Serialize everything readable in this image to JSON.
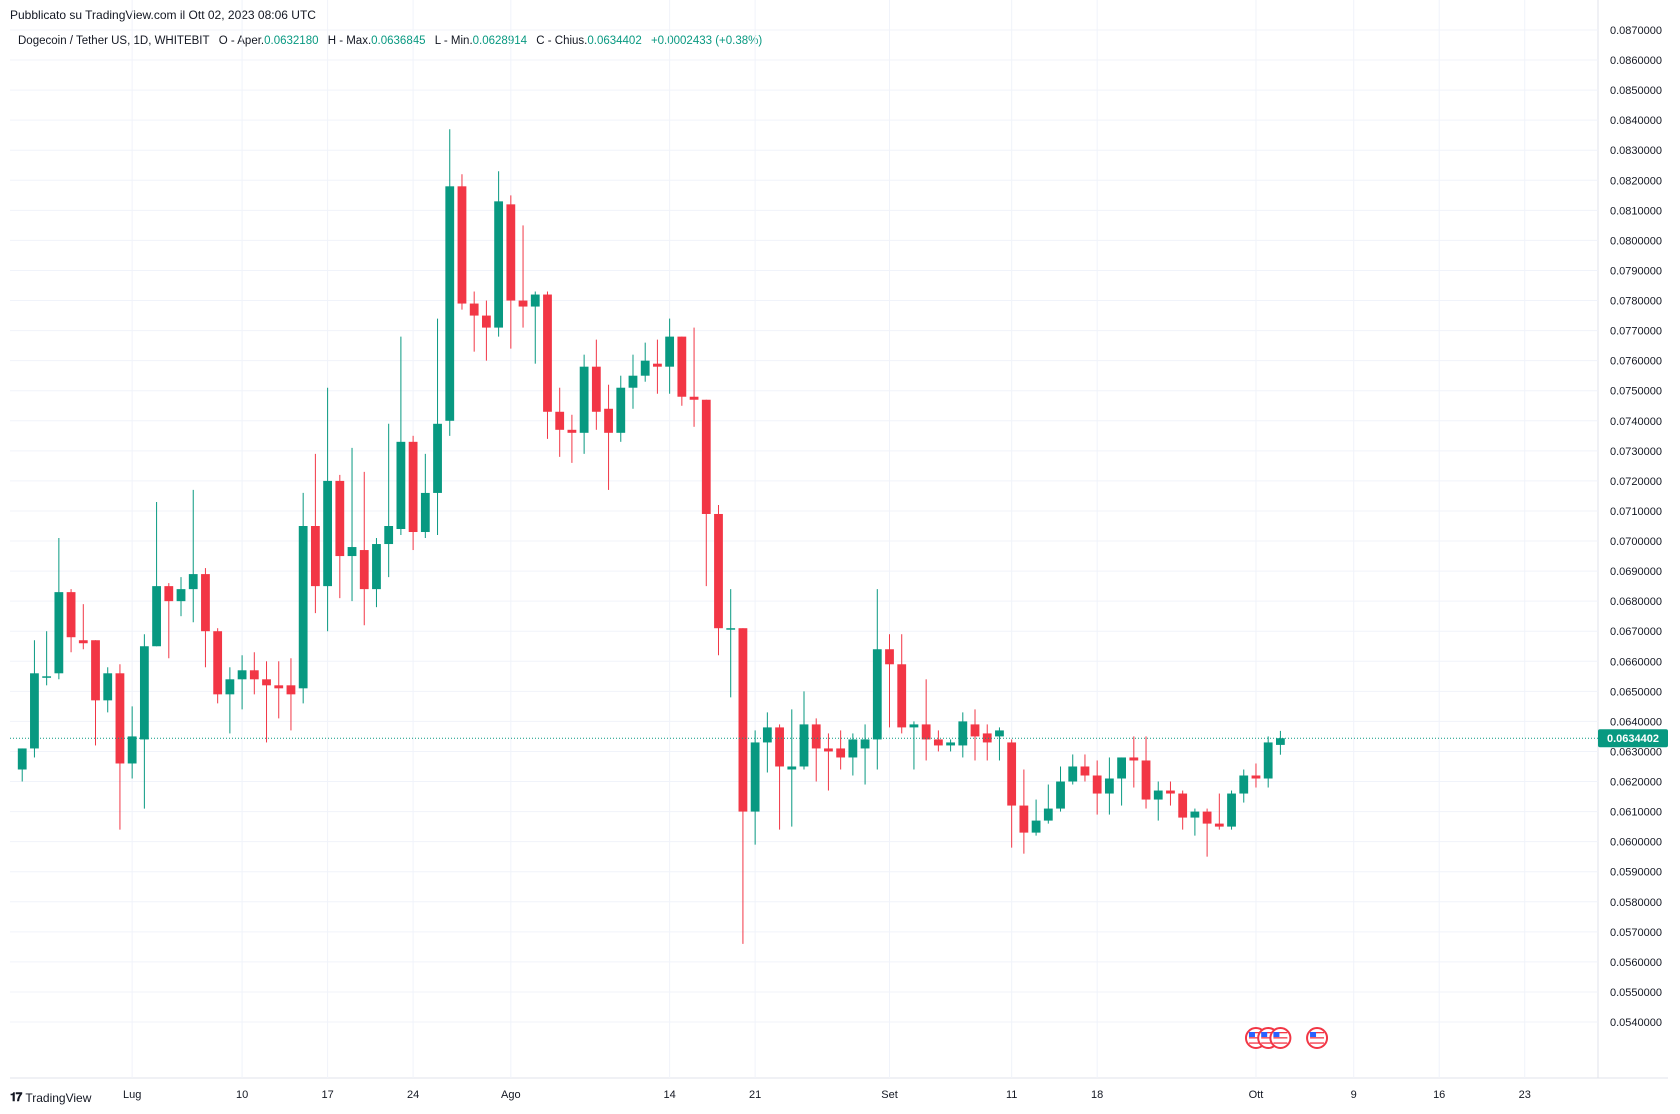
{
  "header": {
    "published": "Pubblicato su TradingView.com il Ott 02, 2023 08:06 UTC"
  },
  "legend": {
    "symbol": "Dogecoin / Tether US, 1D, WHITEBIT",
    "open_label": "O - Aper.",
    "open": "0.0632180",
    "high_label": "H - Max.",
    "high": "0.0636845",
    "low_label": "L - Min.",
    "low": "0.0628914",
    "close_label": "C - Chius.",
    "close": "0.0634402",
    "change": "+0.0002433 (+0.38%)"
  },
  "brand": {
    "name": "TradingView"
  },
  "colors": {
    "up": "#089981",
    "down": "#F23645",
    "grid": "#F0F3FA",
    "text": "#131722"
  },
  "chart_data": {
    "type": "candlestick",
    "ylim": [
      0.0534,
      0.087
    ],
    "y_ticks": [
      "0.0870000",
      "0.0860000",
      "0.0850000",
      "0.0840000",
      "0.0830000",
      "0.0820000",
      "0.0810000",
      "0.0800000",
      "0.0790000",
      "0.0780000",
      "0.0770000",
      "0.0760000",
      "0.0750000",
      "0.0740000",
      "0.0730000",
      "0.0720000",
      "0.0710000",
      "0.0700000",
      "0.0690000",
      "0.0680000",
      "0.0670000",
      "0.0660000",
      "0.0650000",
      "0.0640000",
      "0.0630000",
      "0.0620000",
      "0.0610000",
      "0.0600000",
      "0.0590000",
      "0.0580000",
      "0.0570000",
      "0.0560000",
      "0.0550000",
      "0.0540000"
    ],
    "x_ticks": [
      {
        "label": "Lug",
        "date": "2023-07-01"
      },
      {
        "label": "10",
        "date": "2023-07-10"
      },
      {
        "label": "17",
        "date": "2023-07-17"
      },
      {
        "label": "24",
        "date": "2023-07-24"
      },
      {
        "label": "Ago",
        "date": "2023-08-01"
      },
      {
        "label": "14",
        "date": "2023-08-14"
      },
      {
        "label": "21",
        "date": "2023-08-21"
      },
      {
        "label": "Set",
        "date": "2023-09-01"
      },
      {
        "label": "11",
        "date": "2023-09-11"
      },
      {
        "label": "18",
        "date": "2023-09-18"
      },
      {
        "label": "Ott",
        "date": "2023-10-01"
      },
      {
        "label": "9",
        "date": "2023-10-09"
      },
      {
        "label": "16",
        "date": "2023-10-16"
      },
      {
        "label": "23",
        "date": "2023-10-23"
      }
    ],
    "date_range": [
      "2023-06-21",
      "2023-10-29"
    ],
    "current_price": "0.0634402",
    "current_value": 0.0634402,
    "candles": [
      {
        "date": "2023-06-22",
        "o": 0.0624,
        "h": 0.0631,
        "l": 0.062,
        "c": 0.0631
      },
      {
        "date": "2023-06-23",
        "o": 0.0631,
        "h": 0.0667,
        "l": 0.0628,
        "c": 0.0656
      },
      {
        "date": "2023-06-24",
        "o": 0.0655,
        "h": 0.067,
        "l": 0.0652,
        "c": 0.0655
      },
      {
        "date": "2023-06-25",
        "o": 0.0656,
        "h": 0.0701,
        "l": 0.0654,
        "c": 0.0683
      },
      {
        "date": "2023-06-26",
        "o": 0.0683,
        "h": 0.0684,
        "l": 0.0663,
        "c": 0.0668
      },
      {
        "date": "2023-06-27",
        "o": 0.0667,
        "h": 0.0679,
        "l": 0.0664,
        "c": 0.0666
      },
      {
        "date": "2023-06-28",
        "o": 0.0667,
        "h": 0.0667,
        "l": 0.0632,
        "c": 0.0647
      },
      {
        "date": "2023-06-29",
        "o": 0.0647,
        "h": 0.0658,
        "l": 0.0643,
        "c": 0.0656
      },
      {
        "date": "2023-06-30",
        "o": 0.0656,
        "h": 0.0659,
        "l": 0.0604,
        "c": 0.0626
      },
      {
        "date": "2023-07-01",
        "o": 0.0626,
        "h": 0.0645,
        "l": 0.0621,
        "c": 0.0635
      },
      {
        "date": "2023-07-02",
        "o": 0.0634,
        "h": 0.0669,
        "l": 0.0611,
        "c": 0.0665
      },
      {
        "date": "2023-07-03",
        "o": 0.0665,
        "h": 0.0713,
        "l": 0.0665,
        "c": 0.0685
      },
      {
        "date": "2023-07-04",
        "o": 0.0685,
        "h": 0.0686,
        "l": 0.0661,
        "c": 0.068
      },
      {
        "date": "2023-07-05",
        "o": 0.068,
        "h": 0.0688,
        "l": 0.0675,
        "c": 0.0684
      },
      {
        "date": "2023-07-06",
        "o": 0.0684,
        "h": 0.0717,
        "l": 0.0673,
        "c": 0.0689
      },
      {
        "date": "2023-07-07",
        "o": 0.0689,
        "h": 0.0691,
        "l": 0.0658,
        "c": 0.067
      },
      {
        "date": "2023-07-08",
        "o": 0.067,
        "h": 0.0671,
        "l": 0.0646,
        "c": 0.0649
      },
      {
        "date": "2023-07-09",
        "o": 0.0649,
        "h": 0.0658,
        "l": 0.0636,
        "c": 0.0654
      },
      {
        "date": "2023-07-10",
        "o": 0.0654,
        "h": 0.0662,
        "l": 0.0644,
        "c": 0.0657
      },
      {
        "date": "2023-07-11",
        "o": 0.0657,
        "h": 0.0663,
        "l": 0.0649,
        "c": 0.0654
      },
      {
        "date": "2023-07-12",
        "o": 0.0654,
        "h": 0.066,
        "l": 0.0633,
        "c": 0.0652
      },
      {
        "date": "2023-07-13",
        "o": 0.0652,
        "h": 0.066,
        "l": 0.0641,
        "c": 0.0651
      },
      {
        "date": "2023-07-14",
        "o": 0.0652,
        "h": 0.0661,
        "l": 0.0637,
        "c": 0.0649
      },
      {
        "date": "2023-07-15",
        "o": 0.0651,
        "h": 0.0716,
        "l": 0.0646,
        "c": 0.0705
      },
      {
        "date": "2023-07-16",
        "o": 0.0705,
        "h": 0.0729,
        "l": 0.0676,
        "c": 0.0685
      },
      {
        "date": "2023-07-17",
        "o": 0.0685,
        "h": 0.0751,
        "l": 0.067,
        "c": 0.072
      },
      {
        "date": "2023-07-18",
        "o": 0.072,
        "h": 0.0722,
        "l": 0.0681,
        "c": 0.0695
      },
      {
        "date": "2023-07-19",
        "o": 0.0695,
        "h": 0.0731,
        "l": 0.068,
        "c": 0.0698
      },
      {
        "date": "2023-07-20",
        "o": 0.0697,
        "h": 0.0723,
        "l": 0.0672,
        "c": 0.0684
      },
      {
        "date": "2023-07-21",
        "o": 0.0684,
        "h": 0.0701,
        "l": 0.0678,
        "c": 0.0699
      },
      {
        "date": "2023-07-22",
        "o": 0.0699,
        "h": 0.0739,
        "l": 0.0688,
        "c": 0.0705
      },
      {
        "date": "2023-07-23",
        "o": 0.0704,
        "h": 0.0768,
        "l": 0.0702,
        "c": 0.0733
      },
      {
        "date": "2023-07-24",
        "o": 0.0733,
        "h": 0.0735,
        "l": 0.0697,
        "c": 0.0703
      },
      {
        "date": "2023-07-25",
        "o": 0.0703,
        "h": 0.0729,
        "l": 0.0701,
        "c": 0.0716
      },
      {
        "date": "2023-07-26",
        "o": 0.0716,
        "h": 0.0774,
        "l": 0.0702,
        "c": 0.0739
      },
      {
        "date": "2023-07-27",
        "o": 0.074,
        "h": 0.0837,
        "l": 0.0735,
        "c": 0.0818
      },
      {
        "date": "2023-07-28",
        "o": 0.0818,
        "h": 0.0822,
        "l": 0.0777,
        "c": 0.0779
      },
      {
        "date": "2023-07-29",
        "o": 0.0779,
        "h": 0.0783,
        "l": 0.0763,
        "c": 0.0775
      },
      {
        "date": "2023-07-30",
        "o": 0.0775,
        "h": 0.078,
        "l": 0.076,
        "c": 0.0771
      },
      {
        "date": "2023-07-31",
        "o": 0.0771,
        "h": 0.0823,
        "l": 0.0768,
        "c": 0.0813
      },
      {
        "date": "2023-08-01",
        "o": 0.0812,
        "h": 0.0815,
        "l": 0.0764,
        "c": 0.078
      },
      {
        "date": "2023-08-02",
        "o": 0.078,
        "h": 0.0805,
        "l": 0.0771,
        "c": 0.0778
      },
      {
        "date": "2023-08-03",
        "o": 0.0778,
        "h": 0.0783,
        "l": 0.0759,
        "c": 0.0782
      },
      {
        "date": "2023-08-04",
        "o": 0.0782,
        "h": 0.0783,
        "l": 0.0734,
        "c": 0.0743
      },
      {
        "date": "2023-08-05",
        "o": 0.0743,
        "h": 0.0751,
        "l": 0.0728,
        "c": 0.0737
      },
      {
        "date": "2023-08-06",
        "o": 0.0737,
        "h": 0.0742,
        "l": 0.0726,
        "c": 0.0736
      },
      {
        "date": "2023-08-07",
        "o": 0.0736,
        "h": 0.0762,
        "l": 0.0729,
        "c": 0.0758
      },
      {
        "date": "2023-08-08",
        "o": 0.0758,
        "h": 0.0767,
        "l": 0.0737,
        "c": 0.0743
      },
      {
        "date": "2023-08-09",
        "o": 0.0744,
        "h": 0.0752,
        "l": 0.0717,
        "c": 0.0736
      },
      {
        "date": "2023-08-10",
        "o": 0.0736,
        "h": 0.0755,
        "l": 0.0733,
        "c": 0.0751
      },
      {
        "date": "2023-08-11",
        "o": 0.0751,
        "h": 0.0762,
        "l": 0.0744,
        "c": 0.0755
      },
      {
        "date": "2023-08-12",
        "o": 0.0755,
        "h": 0.0766,
        "l": 0.0753,
        "c": 0.076
      },
      {
        "date": "2023-08-13",
        "o": 0.0759,
        "h": 0.0767,
        "l": 0.0749,
        "c": 0.0758
      },
      {
        "date": "2023-08-14",
        "o": 0.0758,
        "h": 0.0774,
        "l": 0.0749,
        "c": 0.0768
      },
      {
        "date": "2023-08-15",
        "o": 0.0768,
        "h": 0.0768,
        "l": 0.0745,
        "c": 0.0748
      },
      {
        "date": "2023-08-16",
        "o": 0.0748,
        "h": 0.0771,
        "l": 0.0738,
        "c": 0.0747
      },
      {
        "date": "2023-08-17",
        "o": 0.0747,
        "h": 0.0747,
        "l": 0.0685,
        "c": 0.0709
      },
      {
        "date": "2023-08-18",
        "o": 0.0709,
        "h": 0.0712,
        "l": 0.0662,
        "c": 0.0671
      },
      {
        "date": "2023-08-19",
        "o": 0.0671,
        "h": 0.0684,
        "l": 0.0648,
        "c": 0.0671
      },
      {
        "date": "2023-08-20",
        "o": 0.0671,
        "h": 0.0671,
        "l": 0.0566,
        "c": 0.061
      },
      {
        "date": "2023-08-21",
        "o": 0.061,
        "h": 0.0637,
        "l": 0.0599,
        "c": 0.0633
      },
      {
        "date": "2023-08-22",
        "o": 0.0633,
        "h": 0.0643,
        "l": 0.0623,
        "c": 0.0638
      },
      {
        "date": "2023-08-23",
        "o": 0.0638,
        "h": 0.0639,
        "l": 0.0604,
        "c": 0.0625
      },
      {
        "date": "2023-08-24",
        "o": 0.0624,
        "h": 0.0644,
        "l": 0.0605,
        "c": 0.0625
      },
      {
        "date": "2023-08-25",
        "o": 0.0625,
        "h": 0.065,
        "l": 0.0624,
        "c": 0.0639
      },
      {
        "date": "2023-08-26",
        "o": 0.0639,
        "h": 0.0641,
        "l": 0.062,
        "c": 0.0631
      },
      {
        "date": "2023-08-27",
        "o": 0.0631,
        "h": 0.0636,
        "l": 0.0617,
        "c": 0.063
      },
      {
        "date": "2023-08-28",
        "o": 0.0631,
        "h": 0.0637,
        "l": 0.0624,
        "c": 0.0628
      },
      {
        "date": "2023-08-29",
        "o": 0.0628,
        "h": 0.0636,
        "l": 0.0622,
        "c": 0.0634
      },
      {
        "date": "2023-08-30",
        "o": 0.0631,
        "h": 0.0639,
        "l": 0.0619,
        "c": 0.0634
      },
      {
        "date": "2023-08-31",
        "o": 0.0634,
        "h": 0.0684,
        "l": 0.0624,
        "c": 0.0664
      },
      {
        "date": "2023-09-01",
        "o": 0.0664,
        "h": 0.0669,
        "l": 0.0638,
        "c": 0.0659
      },
      {
        "date": "2023-09-02",
        "o": 0.0659,
        "h": 0.0669,
        "l": 0.0636,
        "c": 0.0638
      },
      {
        "date": "2023-09-03",
        "o": 0.0638,
        "h": 0.064,
        "l": 0.0624,
        "c": 0.0639
      },
      {
        "date": "2023-09-04",
        "o": 0.0639,
        "h": 0.0654,
        "l": 0.0627,
        "c": 0.0634
      },
      {
        "date": "2023-09-05",
        "o": 0.0634,
        "h": 0.0637,
        "l": 0.063,
        "c": 0.0632
      },
      {
        "date": "2023-09-06",
        "o": 0.0632,
        "h": 0.0634,
        "l": 0.063,
        "c": 0.0633
      },
      {
        "date": "2023-09-07",
        "o": 0.0632,
        "h": 0.0643,
        "l": 0.0628,
        "c": 0.064
      },
      {
        "date": "2023-09-08",
        "o": 0.0639,
        "h": 0.0644,
        "l": 0.0627,
        "c": 0.0635
      },
      {
        "date": "2023-09-09",
        "o": 0.0636,
        "h": 0.0639,
        "l": 0.0627,
        "c": 0.0633
      },
      {
        "date": "2023-09-10",
        "o": 0.0635,
        "h": 0.0638,
        "l": 0.0627,
        "c": 0.0637
      },
      {
        "date": "2023-09-11",
        "o": 0.0633,
        "h": 0.0634,
        "l": 0.0598,
        "c": 0.0612
      },
      {
        "date": "2023-09-12",
        "o": 0.0612,
        "h": 0.0624,
        "l": 0.0596,
        "c": 0.0603
      },
      {
        "date": "2023-09-13",
        "o": 0.0603,
        "h": 0.0614,
        "l": 0.0602,
        "c": 0.0607
      },
      {
        "date": "2023-09-14",
        "o": 0.0607,
        "h": 0.0619,
        "l": 0.0606,
        "c": 0.0611
      },
      {
        "date": "2023-09-15",
        "o": 0.0611,
        "h": 0.0625,
        "l": 0.061,
        "c": 0.062
      },
      {
        "date": "2023-09-16",
        "o": 0.062,
        "h": 0.0629,
        "l": 0.0619,
        "c": 0.0625
      },
      {
        "date": "2023-09-17",
        "o": 0.0625,
        "h": 0.0629,
        "l": 0.062,
        "c": 0.0622
      },
      {
        "date": "2023-09-18",
        "o": 0.0622,
        "h": 0.0627,
        "l": 0.0609,
        "c": 0.0616
      },
      {
        "date": "2023-09-19",
        "o": 0.0616,
        "h": 0.0628,
        "l": 0.0609,
        "c": 0.0621
      },
      {
        "date": "2023-09-20",
        "o": 0.0621,
        "h": 0.0628,
        "l": 0.0612,
        "c": 0.0628
      },
      {
        "date": "2023-09-21",
        "o": 0.0628,
        "h": 0.0635,
        "l": 0.0618,
        "c": 0.0627
      },
      {
        "date": "2023-09-22",
        "o": 0.0627,
        "h": 0.0635,
        "l": 0.0611,
        "c": 0.0614
      },
      {
        "date": "2023-09-23",
        "o": 0.0614,
        "h": 0.062,
        "l": 0.0607,
        "c": 0.0617
      },
      {
        "date": "2023-09-24",
        "o": 0.0617,
        "h": 0.062,
        "l": 0.0612,
        "c": 0.0616
      },
      {
        "date": "2023-09-25",
        "o": 0.0616,
        "h": 0.0617,
        "l": 0.0604,
        "c": 0.0608
      },
      {
        "date": "2023-09-26",
        "o": 0.0608,
        "h": 0.0611,
        "l": 0.0602,
        "c": 0.061
      },
      {
        "date": "2023-09-27",
        "o": 0.061,
        "h": 0.0611,
        "l": 0.0595,
        "c": 0.0606
      },
      {
        "date": "2023-09-28",
        "o": 0.0606,
        "h": 0.0616,
        "l": 0.0604,
        "c": 0.0605
      },
      {
        "date": "2023-09-29",
        "o": 0.0605,
        "h": 0.0617,
        "l": 0.0604,
        "c": 0.0616
      },
      {
        "date": "2023-09-30",
        "o": 0.0616,
        "h": 0.0624,
        "l": 0.0613,
        "c": 0.0622
      },
      {
        "date": "2023-10-01",
        "o": 0.0622,
        "h": 0.0626,
        "l": 0.0618,
        "c": 0.0621
      },
      {
        "date": "2023-10-02",
        "o": 0.0621,
        "h": 0.0635,
        "l": 0.0618,
        "c": 0.0633
      },
      {
        "date": "2023-10-03",
        "o": 0.063218,
        "h": 0.0636845,
        "l": 0.0628914,
        "c": 0.0634402
      }
    ],
    "event_markers": [
      "2023-10-01",
      "2023-10-02",
      "2023-10-03",
      "2023-10-06"
    ]
  }
}
